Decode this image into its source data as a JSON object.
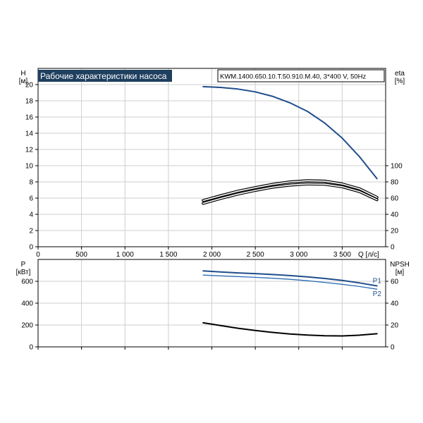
{
  "title": "Рабочие характеристики насоса",
  "model": "KWM.1400.650.10.T.50.910.M.40, 3*400 V, 50Hz",
  "colors": {
    "head": "#1f4e8c",
    "p1": "#1f4e8c",
    "p2": "#2a6db5",
    "efficiency": "#000000",
    "npsh": "#000000",
    "title_bg": "#1f3f5f"
  },
  "chart_data": [
    {
      "type": "line",
      "x_label": "Q [л/с]",
      "xlim": [
        0,
        4000
      ],
      "x_ticks": [
        0,
        500,
        1000,
        1500,
        2000,
        2500,
        3000,
        3500
      ],
      "x_tick_labels": [
        "0",
        "500",
        "1 000",
        "1 500",
        "2 000",
        "2 500",
        "3 000",
        "3 500"
      ],
      "left_axis": {
        "name": "H",
        "unit": "[м]",
        "ylim": [
          0,
          22
        ],
        "ticks": [
          0,
          2,
          4,
          6,
          8,
          10,
          12,
          14,
          16,
          18,
          20
        ]
      },
      "right_axis": {
        "name": "eta",
        "unit": "[%]",
        "ylim": [
          0,
          220
        ],
        "ticks": [
          0,
          20,
          40,
          60,
          80,
          100
        ]
      },
      "grid": true,
      "series": [
        {
          "axis": "left",
          "style": "head",
          "x": [
            1900,
            2100,
            2300,
            2500,
            2700,
            2900,
            3100,
            3300,
            3500,
            3700,
            3900
          ],
          "y": [
            19.75,
            19.65,
            19.45,
            19.1,
            18.55,
            17.75,
            16.7,
            15.25,
            13.4,
            11.1,
            8.4
          ]
        },
        {
          "axis": "right",
          "style": "efficiency",
          "x": [
            1900,
            2100,
            2300,
            2500,
            2700,
            2900,
            3100,
            3300,
            3500,
            3700,
            3900
          ],
          "y": [
            57,
            63,
            68.5,
            73,
            77,
            80,
            81.5,
            81,
            77.5,
            71.5,
            61
          ]
        },
        {
          "axis": "right",
          "style": "efficiency",
          "x": [
            1900,
            2100,
            2300,
            2500,
            2700,
            2900,
            3100,
            3300,
            3500,
            3700,
            3900
          ],
          "y": [
            53.5,
            59.5,
            65,
            69.5,
            73.5,
            76,
            77.5,
            77,
            74,
            68,
            58
          ]
        }
      ]
    },
    {
      "type": "line",
      "xlim": [
        0,
        4000
      ],
      "left_axis": {
        "name": "P",
        "unit": "[кВт]",
        "ylim": [
          0,
          800
        ],
        "ticks": [
          0,
          200,
          400,
          600
        ]
      },
      "right_axis": {
        "name": "NPSH",
        "unit": "[м]",
        "ylim": [
          0,
          80
        ],
        "ticks": [
          0,
          20,
          40,
          60
        ]
      },
      "grid": true,
      "series": [
        {
          "name": "P1",
          "axis": "left",
          "style": "p1",
          "x": [
            1900,
            2100,
            2300,
            2500,
            2700,
            2900,
            3100,
            3300,
            3500,
            3700,
            3900
          ],
          "y": [
            695,
            686,
            677,
            670,
            662,
            652,
            640,
            626,
            608,
            585,
            558
          ]
        },
        {
          "name": "P2",
          "axis": "left",
          "style": "p2",
          "x": [
            1900,
            2100,
            2300,
            2500,
            2700,
            2900,
            3100,
            3300,
            3500,
            3700,
            3900
          ],
          "y": [
            657,
            650,
            643,
            636,
            628,
            618,
            605,
            590,
            572,
            552,
            528
          ]
        },
        {
          "axis": "right",
          "style": "npsh",
          "x": [
            1900,
            2100,
            2300,
            2500,
            2700,
            2900,
            3100,
            3300,
            3500,
            3700,
            3900
          ],
          "y": [
            22,
            19.5,
            17,
            15,
            13.2,
            11.8,
            10.8,
            10.2,
            10,
            10.7,
            12
          ]
        }
      ]
    }
  ]
}
